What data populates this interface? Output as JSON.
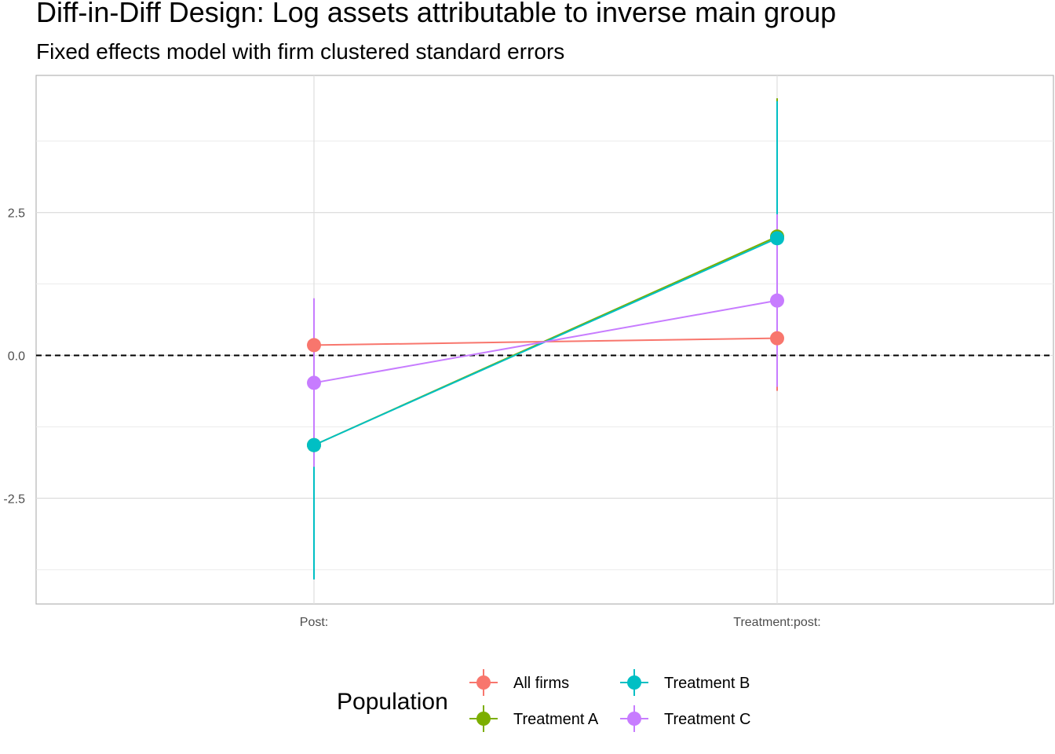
{
  "chart_data": {
    "type": "scatter",
    "title": "Diff-in-Diff Design: Log assets attributable to inverse main group",
    "subtitle": "Fixed effects model with firm clustered standard errors",
    "xlabel": "",
    "ylabel": "",
    "categories": [
      "Post:",
      "Treatment:post:"
    ],
    "ylim": [
      -4.35,
      4.9
    ],
    "y_ticks": [
      -2.5,
      0.0,
      2.5
    ],
    "y_tick_labels": [
      "-2.5",
      "0.0",
      "2.5"
    ],
    "reference_line": 0,
    "grid": true,
    "legend": {
      "title": "Population",
      "position": "bottom"
    },
    "series": [
      {
        "name": "All firms",
        "color": "#F8766D",
        "values": [
          0.18,
          0.3
        ],
        "ci_low": [
          0.18,
          -0.62
        ],
        "ci_high": [
          0.18,
          1.22
        ]
      },
      {
        "name": "Treatment A",
        "color": "#7CAE00",
        "values": [
          -1.57,
          2.08
        ],
        "ci_low": [
          -3.9,
          -0.3
        ],
        "ci_high": [
          0.75,
          4.5
        ]
      },
      {
        "name": "Treatment B",
        "color": "#00BFC4",
        "values": [
          -1.57,
          2.05
        ],
        "ci_low": [
          -3.92,
          -0.35
        ],
        "ci_high": [
          0.78,
          4.45
        ]
      },
      {
        "name": "Treatment C",
        "color": "#C77CFF",
        "values": [
          -0.48,
          0.96
        ],
        "ci_low": [
          -1.95,
          -0.55
        ],
        "ci_high": [
          1.0,
          2.47
        ]
      }
    ]
  }
}
